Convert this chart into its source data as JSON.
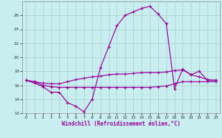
{
  "bg_color": "#c8eef0",
  "line_color": "#990099",
  "grid_color": "#aacccc",
  "xlabel": "Windchill (Refroidissement éolien,°C)",
  "xlim": [
    -0.5,
    23.5
  ],
  "ylim": [
    12,
    28
  ],
  "yticks": [
    12,
    14,
    16,
    18,
    20,
    22,
    24,
    26
  ],
  "xticks": [
    0,
    1,
    2,
    3,
    4,
    5,
    6,
    7,
    8,
    9,
    10,
    11,
    12,
    13,
    14,
    15,
    16,
    17,
    18,
    19,
    20,
    21,
    22,
    23
  ],
  "hours": [
    0,
    1,
    2,
    3,
    4,
    5,
    6,
    7,
    8,
    9,
    10,
    11,
    12,
    13,
    14,
    15,
    16,
    17,
    18,
    19,
    20,
    21,
    22,
    23
  ],
  "curve_main": [
    16.7,
    16.3,
    15.8,
    15.0,
    15.0,
    13.5,
    13.0,
    12.2,
    14.0,
    18.5,
    21.5,
    24.5,
    26.0,
    26.5,
    27.0,
    27.3,
    26.2,
    24.8,
    15.5,
    18.3,
    17.5,
    18.0,
    16.7,
    16.7
  ],
  "curve_upper": [
    16.7,
    16.5,
    16.3,
    16.2,
    16.2,
    16.5,
    16.8,
    17.0,
    17.2,
    17.3,
    17.5,
    17.6,
    17.6,
    17.7,
    17.8,
    17.8,
    17.8,
    17.9,
    18.1,
    18.2,
    17.5,
    17.2,
    16.8,
    16.7
  ],
  "curve_mid": [
    16.7,
    16.5,
    16.0,
    15.8,
    15.7,
    15.7,
    15.7,
    15.7,
    15.7,
    15.7,
    15.7,
    15.7,
    15.7,
    15.7,
    15.7,
    15.7,
    15.8,
    15.9,
    16.2,
    16.5,
    16.5,
    16.5,
    16.5,
    16.5
  ]
}
